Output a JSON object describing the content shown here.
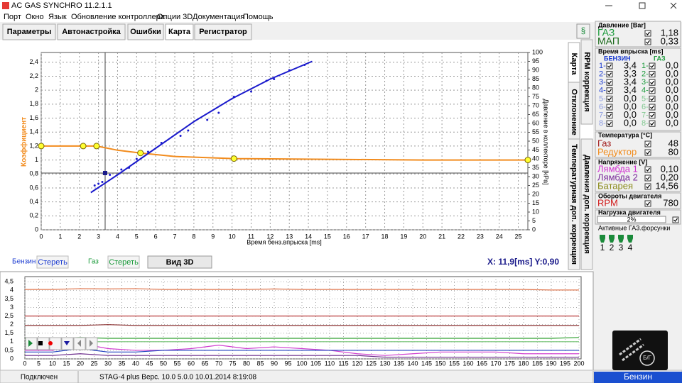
{
  "window": {
    "title": "AC GAS SYNCHRO  11.2.1.1"
  },
  "menu": [
    "Порт",
    "Окно",
    "Язык",
    "Обновление контроллера",
    "Опции 3D",
    "Документация",
    "Помощь"
  ],
  "tabs": [
    "Параметры",
    "Автонастройка",
    "Ошибки",
    "Карта",
    "Регистратор"
  ],
  "side_tabs": [
    "Карта",
    "RPM коррекция",
    "Отклонение",
    "Температурная доп. коррекция",
    "Давления доп. коррекция"
  ],
  "map_chart": {
    "type": "line",
    "x_label": "Время бенз.впрыска [ms]",
    "y_label": "Коэффициент",
    "y2_label": "Давление в коллекторе [kPa]",
    "xlim": [
      0,
      25.5
    ],
    "ylim": [
      0,
      2.54
    ],
    "y2lim": [
      0,
      100
    ],
    "grid": true,
    "xticks": [
      0,
      1,
      2,
      3,
      4,
      5,
      6,
      7,
      8,
      9,
      10,
      11,
      12,
      13,
      14,
      15,
      16,
      17,
      18,
      19,
      20,
      21,
      22,
      23,
      24,
      25
    ],
    "yticks": [
      0,
      {
        "value": 0.2,
        "label": "0,2"
      },
      {
        "value": 0.4,
        "label": "0,4"
      },
      {
        "value": 0.6,
        "label": "0,6"
      },
      {
        "value": 0.8,
        "label": "0,8"
      },
      1,
      {
        "value": 1.2,
        "label": "1,2"
      },
      {
        "value": 1.4,
        "label": "1,4"
      },
      {
        "value": 1.6,
        "label": "1,6"
      },
      {
        "value": 1.8,
        "label": "1,8"
      },
      2,
      {
        "value": 2.2,
        "label": "2,2"
      },
      {
        "value": 2.4,
        "label": "2,4"
      }
    ],
    "y2ticks": [
      0,
      5,
      10,
      15,
      20,
      25,
      30,
      35,
      40,
      45,
      50,
      55,
      60,
      65,
      70,
      75,
      80,
      85,
      90,
      95,
      100
    ],
    "series": [
      {
        "style": "line",
        "color": "#f28c1e",
        "x": [
          0,
          2.2,
          2.9,
          4,
          5.2,
          7,
          10.1,
          15,
          20,
          25.5
        ],
        "values": [
          1.2,
          1.2,
          1.2,
          1.14,
          1.1,
          1.05,
          1.02,
          1.01,
          1.0,
          1.0
        ]
      },
      {
        "style": "nodes",
        "color": "#ffff30",
        "x": [
          0,
          2.2,
          2.9,
          5.2,
          10.1,
          25.5
        ],
        "values": [
          1.2,
          1.2,
          1.2,
          1.1,
          1.02,
          1.0
        ]
      },
      {
        "style": "line",
        "color": "#1a1acc",
        "axis": "y2",
        "x": [
          2.6,
          4,
          6,
          8,
          10,
          12,
          14.2
        ],
        "values": [
          21,
          31,
          46,
          61,
          74,
          85,
          95
        ]
      },
      {
        "style": "points",
        "color": "#1a1acc",
        "axis": "y2",
        "x": [
          2.8,
          3,
          3.2,
          3.6,
          4.2,
          4.6,
          5,
          5.6,
          6.3,
          7.3,
          7.7,
          8.7,
          9.3,
          10.1,
          11,
          11.8,
          12.2,
          13,
          13.8
        ],
        "values": [
          25,
          26,
          27,
          31,
          34,
          35,
          40,
          44,
          49,
          53,
          56,
          62,
          66,
          75,
          78,
          84,
          85,
          90,
          93
        ]
      }
    ],
    "cursor": {
      "x": 3.35,
      "y": 32
    }
  },
  "map_controls": {
    "petrol_label": "Бензин",
    "petrol_clear": "Стереть",
    "gas_label": "Газ",
    "gas_clear": "Стереть",
    "view3d": "Вид 3D",
    "readout": "X: 11,9[ms]  Y:0,90"
  },
  "scope_chart": {
    "type": "line",
    "xlim": [
      0,
      200
    ],
    "ylim": [
      0,
      4.8
    ],
    "grid": true,
    "xticks": [
      0,
      5,
      10,
      15,
      20,
      25,
      30,
      35,
      40,
      45,
      50,
      55,
      60,
      65,
      70,
      75,
      80,
      85,
      90,
      95,
      100,
      105,
      110,
      115,
      120,
      125,
      130,
      135,
      140,
      145,
      150,
      155,
      160,
      165,
      170,
      175,
      180,
      185,
      190,
      195,
      200
    ],
    "yticks": [
      0,
      {
        "value": 0.5,
        "label": "0,5"
      },
      1,
      {
        "value": 1.5,
        "label": "1,5"
      },
      2,
      {
        "value": 2.5,
        "label": "2,5"
      },
      3,
      {
        "value": 3.5,
        "label": "3,5"
      },
      4,
      {
        "value": 4.5,
        "label": "4,5"
      }
    ],
    "x": [
      0,
      10,
      20,
      30,
      40,
      50,
      60,
      70,
      80,
      90,
      100,
      110,
      120,
      130,
      140,
      150,
      160,
      170,
      180,
      190,
      200
    ],
    "series": [
      {
        "color": "#e07850",
        "values": [
          4.05,
          4.05,
          4.1,
          4.08,
          4.1,
          4.05,
          4.05,
          4.05,
          4.05,
          4.08,
          4.05,
          4.05,
          4.05,
          4.05,
          4.05,
          4.05,
          4.05,
          4.05,
          4.05,
          4.02,
          4.02
        ]
      },
      {
        "color": "#b02020",
        "values": [
          2.5,
          2.5,
          2.5,
          2.5,
          2.5,
          2.5,
          2.5,
          2.5,
          2.5,
          2.5,
          2.5,
          2.5,
          2.5,
          2.5,
          2.5,
          2.5,
          2.5,
          2.5,
          2.5,
          2.5,
          2.5
        ]
      },
      {
        "color": "#8b3030",
        "values": [
          1.95,
          1.95,
          1.95,
          2.0,
          1.95,
          1.95,
          1.95,
          1.95,
          1.95,
          1.95,
          1.95,
          1.95,
          1.95,
          1.95,
          1.95,
          1.95,
          1.95,
          1.95,
          1.95,
          1.95,
          1.95
        ]
      },
      {
        "color": "#30a030",
        "values": [
          1.2,
          1.2,
          1.25,
          1.2,
          1.2,
          1.2,
          1.2,
          1.2,
          1.2,
          1.2,
          1.2,
          1.2,
          1.2,
          1.2,
          1.2,
          1.2,
          1.2,
          1.2,
          1.2,
          1.2,
          1.25
        ]
      },
      {
        "color": "#70c070",
        "values": [
          1.0,
          1.0,
          1.0,
          1.0,
          1.0,
          1.0,
          1.0,
          1.0,
          1.0,
          1.0,
          1.0,
          1.0,
          1.0,
          1.0,
          1.0,
          1.0,
          1.0,
          1.0,
          1.0,
          1.0,
          1.0
        ]
      },
      {
        "color": "#d040d0",
        "values": [
          0.5,
          0.5,
          0.9,
          0.6,
          0.5,
          0.5,
          0.6,
          0.8,
          0.6,
          0.7,
          0.6,
          0.5,
          0.3,
          0.2,
          0.3,
          0.4,
          0.4,
          0.4,
          0.3,
          0.3,
          0.3
        ]
      },
      {
        "color": "#2040c0",
        "values": [
          0.4,
          0.4,
          0.6,
          0.4,
          0.4,
          0.5,
          0.5,
          0.5,
          0.5,
          0.5,
          0.5,
          0.5,
          0.5,
          0.5,
          0.5,
          0.5,
          0.5,
          0.5,
          0.5,
          0.5,
          0.5
        ]
      },
      {
        "color": "#6a2a8a",
        "values": [
          0.2,
          0.2,
          0.3,
          0.2,
          0.2,
          0.2,
          0.2,
          0.2,
          0.2,
          0.2,
          0.2,
          0.2,
          0.2,
          0.1,
          0.1,
          0.1,
          0.1,
          0.1,
          0.1,
          0.1,
          0.1
        ]
      }
    ]
  },
  "status": [
    "Подключен",
    "STAG-4 plus   Верс. 10.0  5.0.0    10.01.2014 8:19:08"
  ],
  "panel": {
    "pressure": {
      "title": "Давление [Bar]",
      "rows": [
        {
          "label": "ГАЗ",
          "value": "1,18"
        },
        {
          "label": "МАП",
          "value": "0,33"
        }
      ]
    },
    "injection": {
      "title": "Время впрыска [ms]",
      "col_petrol": "БЕНЗИН",
      "col_gas": "ГАЗ",
      "rows": [
        {
          "n": "1-",
          "petrol": "3,4",
          "gas": "0,0"
        },
        {
          "n": "2-",
          "petrol": "3,3",
          "gas": "0,0"
        },
        {
          "n": "3-",
          "petrol": "3,4",
          "gas": "0,0"
        },
        {
          "n": "4-",
          "petrol": "3,4",
          "gas": "0,0"
        },
        {
          "n": "5-",
          "petrol": "0,0",
          "gas": "0,0"
        },
        {
          "n": "6-",
          "petrol": "0,0",
          "gas": "0,0"
        },
        {
          "n": "7-",
          "petrol": "0,0",
          "gas": "0,0"
        },
        {
          "n": "8-",
          "petrol": "0,0",
          "gas": "0,0"
        }
      ]
    },
    "temperature": {
      "title": "Температура  [°C]",
      "rows": [
        {
          "label": "Газ",
          "value": "48"
        },
        {
          "label": "Редуктор",
          "value": "80"
        }
      ]
    },
    "voltage": {
      "title": "Напряжение [V]",
      "rows": [
        {
          "label": "Лямбда 1",
          "value": "0,10"
        },
        {
          "label": "Лямбда 2",
          "value": "0,20"
        },
        {
          "label": "Батарея",
          "value": "14,56"
        }
      ]
    },
    "rpm": {
      "title": "Обороты двигателя",
      "rows": [
        {
          "label": "RPM",
          "value": "780"
        }
      ]
    },
    "load": {
      "title": "Нагрузка двигателя",
      "value": "2%"
    },
    "injectors": {
      "title": "Активные ГАЗ.форсунки",
      "labels": [
        "1",
        "2",
        "3",
        "4"
      ]
    },
    "mode": "Бензин"
  }
}
